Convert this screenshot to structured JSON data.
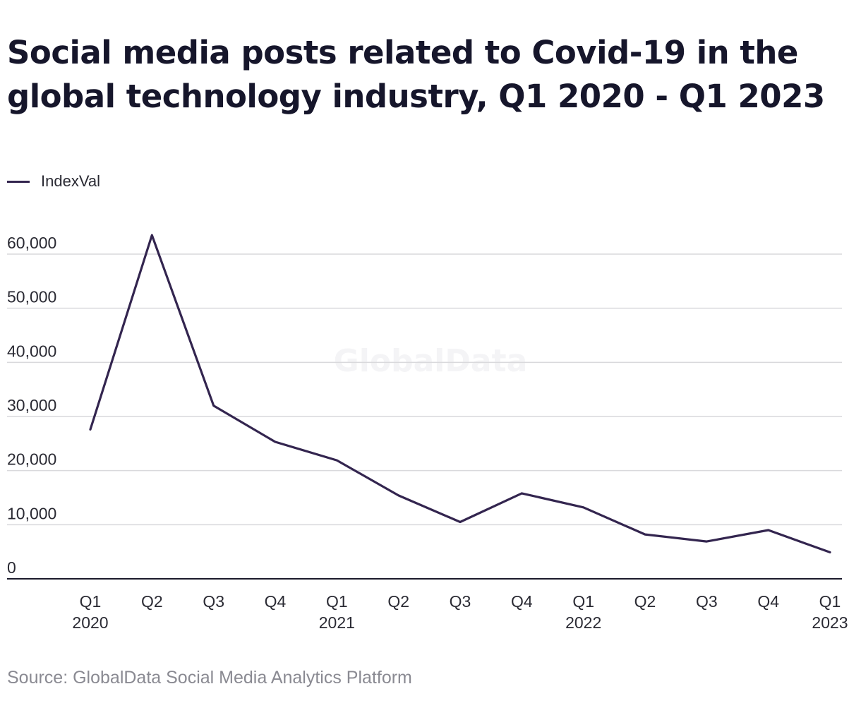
{
  "chart_data": {
    "type": "line",
    "title": "Social media posts related to Covid-19 in the global technology industry, Q1 2020 - Q1 2023",
    "source": "Source: GlobalData Social Media Analytics Platform",
    "watermark": "GlobalData",
    "legend": {
      "placement": "top-left"
    },
    "grid": {
      "horizontal": true,
      "vertical": false
    },
    "xlabel": "",
    "ylabel": "",
    "ylim": [
      0,
      60000
    ],
    "yticks": [
      "0",
      "10,000",
      "20,000",
      "30,000",
      "40,000",
      "50,000",
      "60,000"
    ],
    "ytick_values": [
      0,
      10000,
      20000,
      30000,
      40000,
      50000,
      60000
    ],
    "categories": [
      {
        "quarter": "Q1",
        "year": "2020"
      },
      {
        "quarter": "Q2",
        "year": ""
      },
      {
        "quarter": "Q3",
        "year": ""
      },
      {
        "quarter": "Q4",
        "year": ""
      },
      {
        "quarter": "Q1",
        "year": "2021"
      },
      {
        "quarter": "Q2",
        "year": ""
      },
      {
        "quarter": "Q3",
        "year": ""
      },
      {
        "quarter": "Q4",
        "year": ""
      },
      {
        "quarter": "Q1",
        "year": "2022"
      },
      {
        "quarter": "Q2",
        "year": ""
      },
      {
        "quarter": "Q3",
        "year": ""
      },
      {
        "quarter": "Q4",
        "year": ""
      },
      {
        "quarter": "Q1",
        "year": "2023"
      }
    ],
    "series": [
      {
        "name": "IndexVal",
        "color": "#33254f",
        "values": [
          27600,
          63500,
          32000,
          25300,
          21900,
          15400,
          10500,
          15800,
          13200,
          8200,
          6900,
          9000,
          4900
        ]
      }
    ]
  }
}
